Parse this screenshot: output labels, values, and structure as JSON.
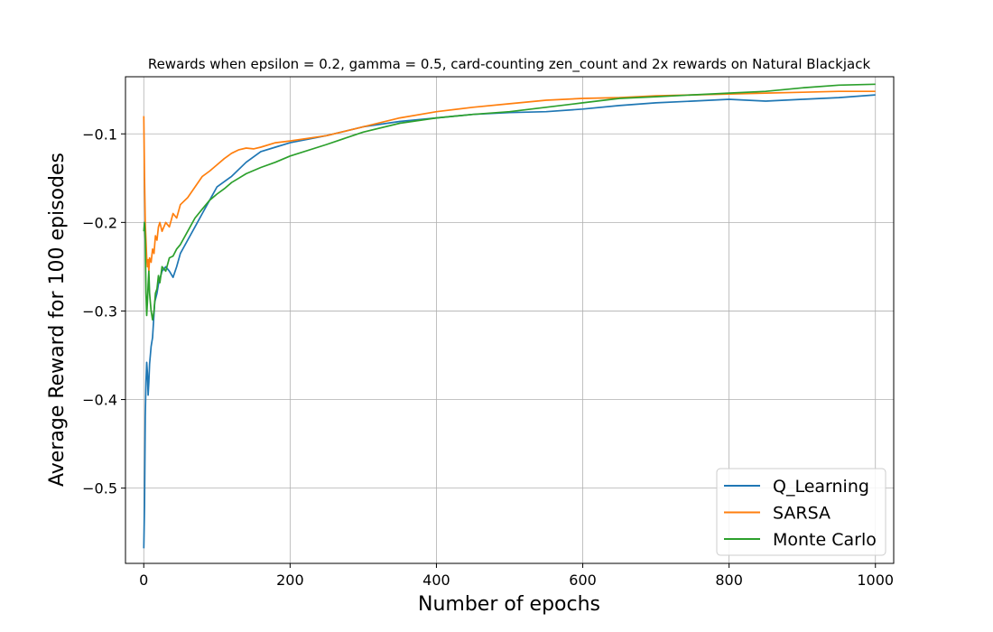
{
  "chart_data": {
    "type": "line",
    "title": "Rewards when epsilon = 0.2, gamma = 0.5, card-counting zen_count and 2x rewards on Natural Blackjack",
    "xlabel": "Number of epochs",
    "ylabel": "Average Reward for 100 episodes",
    "xlim": [
      -25,
      1025
    ],
    "ylim": [
      -0.585,
      -0.0355
    ],
    "xticks": [
      0,
      200,
      400,
      600,
      800,
      1000
    ],
    "xtick_labels": [
      "0",
      "200",
      "400",
      "600",
      "800",
      "1000"
    ],
    "yticks": [
      -0.5,
      -0.4,
      -0.3,
      -0.2,
      -0.1
    ],
    "ytick_labels": [
      "−0.5",
      "−0.4",
      "−0.3",
      "−0.2",
      "−0.1"
    ],
    "grid": true,
    "legend_position": "lower-right",
    "series": [
      {
        "name": "Q_Learning",
        "color": "#1f77b4",
        "points": [
          [
            0,
            -0.568
          ],
          [
            1,
            -0.52
          ],
          [
            2,
            -0.42
          ],
          [
            3,
            -0.38
          ],
          [
            4,
            -0.358
          ],
          [
            5,
            -0.37
          ],
          [
            6,
            -0.395
          ],
          [
            7,
            -0.38
          ],
          [
            8,
            -0.36
          ],
          [
            10,
            -0.34
          ],
          [
            12,
            -0.33
          ],
          [
            15,
            -0.29
          ],
          [
            18,
            -0.28
          ],
          [
            20,
            -0.27
          ],
          [
            25,
            -0.255
          ],
          [
            30,
            -0.25
          ],
          [
            35,
            -0.255
          ],
          [
            40,
            -0.262
          ],
          [
            45,
            -0.25
          ],
          [
            50,
            -0.235
          ],
          [
            60,
            -0.22
          ],
          [
            70,
            -0.205
          ],
          [
            80,
            -0.19
          ],
          [
            90,
            -0.175
          ],
          [
            100,
            -0.16
          ],
          [
            120,
            -0.148
          ],
          [
            140,
            -0.132
          ],
          [
            160,
            -0.12
          ],
          [
            180,
            -0.115
          ],
          [
            200,
            -0.11
          ],
          [
            250,
            -0.102
          ],
          [
            300,
            -0.092
          ],
          [
            350,
            -0.086
          ],
          [
            400,
            -0.082
          ],
          [
            450,
            -0.078
          ],
          [
            500,
            -0.076
          ],
          [
            550,
            -0.075
          ],
          [
            600,
            -0.072
          ],
          [
            650,
            -0.068
          ],
          [
            700,
            -0.065
          ],
          [
            750,
            -0.063
          ],
          [
            800,
            -0.061
          ],
          [
            850,
            -0.063
          ],
          [
            900,
            -0.061
          ],
          [
            950,
            -0.059
          ],
          [
            1000,
            -0.056
          ]
        ]
      },
      {
        "name": "SARSA",
        "color": "#ff7f0e",
        "points": [
          [
            0,
            -0.08
          ],
          [
            1,
            -0.15
          ],
          [
            2,
            -0.2
          ],
          [
            3,
            -0.22
          ],
          [
            4,
            -0.24
          ],
          [
            5,
            -0.25
          ],
          [
            6,
            -0.242
          ],
          [
            7,
            -0.255
          ],
          [
            8,
            -0.24
          ],
          [
            10,
            -0.245
          ],
          [
            12,
            -0.23
          ],
          [
            14,
            -0.235
          ],
          [
            16,
            -0.215
          ],
          [
            18,
            -0.22
          ],
          [
            20,
            -0.205
          ],
          [
            22,
            -0.2
          ],
          [
            25,
            -0.21
          ],
          [
            30,
            -0.2
          ],
          [
            35,
            -0.205
          ],
          [
            40,
            -0.19
          ],
          [
            45,
            -0.195
          ],
          [
            50,
            -0.18
          ],
          [
            60,
            -0.172
          ],
          [
            70,
            -0.16
          ],
          [
            80,
            -0.148
          ],
          [
            90,
            -0.142
          ],
          [
            100,
            -0.135
          ],
          [
            110,
            -0.128
          ],
          [
            120,
            -0.122
          ],
          [
            130,
            -0.118
          ],
          [
            140,
            -0.116
          ],
          [
            150,
            -0.117
          ],
          [
            160,
            -0.115
          ],
          [
            180,
            -0.11
          ],
          [
            200,
            -0.108
          ],
          [
            250,
            -0.102
          ],
          [
            300,
            -0.092
          ],
          [
            350,
            -0.082
          ],
          [
            400,
            -0.075
          ],
          [
            450,
            -0.07
          ],
          [
            500,
            -0.066
          ],
          [
            550,
            -0.062
          ],
          [
            600,
            -0.06
          ],
          [
            650,
            -0.059
          ],
          [
            700,
            -0.057
          ],
          [
            750,
            -0.056
          ],
          [
            800,
            -0.055
          ],
          [
            850,
            -0.054
          ],
          [
            900,
            -0.053
          ],
          [
            950,
            -0.052
          ],
          [
            1000,
            -0.052
          ]
        ]
      },
      {
        "name": "Monte Carlo",
        "color": "#2ca02c",
        "points": [
          [
            0,
            -0.21
          ],
          [
            1,
            -0.2
          ],
          [
            2,
            -0.22
          ],
          [
            3,
            -0.28
          ],
          [
            4,
            -0.305
          ],
          [
            5,
            -0.29
          ],
          [
            6,
            -0.27
          ],
          [
            7,
            -0.255
          ],
          [
            8,
            -0.28
          ],
          [
            10,
            -0.3
          ],
          [
            12,
            -0.31
          ],
          [
            14,
            -0.3
          ],
          [
            16,
            -0.28
          ],
          [
            18,
            -0.275
          ],
          [
            20,
            -0.26
          ],
          [
            22,
            -0.268
          ],
          [
            25,
            -0.25
          ],
          [
            30,
            -0.255
          ],
          [
            35,
            -0.24
          ],
          [
            40,
            -0.238
          ],
          [
            45,
            -0.23
          ],
          [
            50,
            -0.225
          ],
          [
            60,
            -0.21
          ],
          [
            70,
            -0.195
          ],
          [
            80,
            -0.185
          ],
          [
            90,
            -0.175
          ],
          [
            100,
            -0.168
          ],
          [
            110,
            -0.162
          ],
          [
            120,
            -0.155
          ],
          [
            130,
            -0.15
          ],
          [
            140,
            -0.145
          ],
          [
            160,
            -0.138
          ],
          [
            180,
            -0.132
          ],
          [
            200,
            -0.125
          ],
          [
            250,
            -0.112
          ],
          [
            300,
            -0.098
          ],
          [
            350,
            -0.088
          ],
          [
            400,
            -0.082
          ],
          [
            450,
            -0.078
          ],
          [
            500,
            -0.075
          ],
          [
            550,
            -0.07
          ],
          [
            600,
            -0.065
          ],
          [
            650,
            -0.06
          ],
          [
            700,
            -0.058
          ],
          [
            750,
            -0.056
          ],
          [
            800,
            -0.054
          ],
          [
            850,
            -0.052
          ],
          [
            900,
            -0.048
          ],
          [
            950,
            -0.045
          ],
          [
            1000,
            -0.044
          ]
        ]
      }
    ]
  }
}
